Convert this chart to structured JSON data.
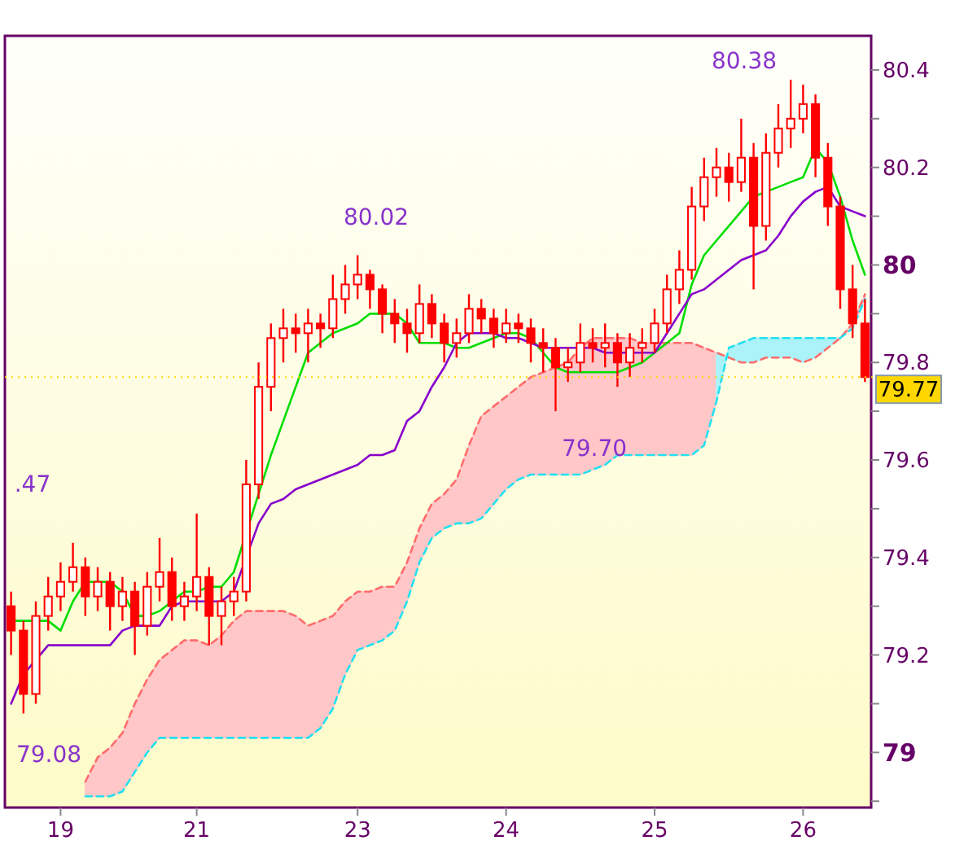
{
  "chart_data": {
    "type": "candlestick",
    "color": "#ff0000",
    "categories": [
      null,
      null,
      null,
      null,
      "19",
      null,
      null,
      null,
      null,
      null,
      null,
      null,
      null,
      null,
      null,
      "21",
      null,
      null,
      null,
      null,
      null,
      null,
      null,
      null,
      null,
      null,
      null,
      null,
      "23",
      null,
      null,
      null,
      null,
      null,
      null,
      null,
      null,
      null,
      null,
      null,
      "24",
      null,
      null,
      null,
      null,
      null,
      null,
      null,
      null,
      null,
      null,
      null,
      "25",
      null,
      null,
      null,
      null,
      null,
      null,
      null,
      null,
      null,
      null,
      null,
      "26",
      null,
      null,
      null,
      null,
      null
    ],
    "ohlc": [
      [
        79.3,
        79.33,
        79.2,
        79.25
      ],
      [
        79.25,
        79.27,
        79.08,
        79.12
      ],
      [
        79.12,
        79.31,
        79.1,
        79.28
      ],
      [
        79.28,
        79.36,
        79.25,
        79.32
      ],
      [
        79.32,
        79.39,
        79.29,
        79.35
      ],
      [
        79.35,
        79.43,
        79.33,
        79.38
      ],
      [
        79.38,
        79.4,
        79.28,
        79.32
      ],
      [
        79.32,
        79.38,
        79.29,
        79.35
      ],
      [
        79.35,
        79.37,
        79.25,
        79.3
      ],
      [
        79.3,
        79.36,
        79.27,
        79.33
      ],
      [
        79.33,
        79.35,
        79.2,
        79.26
      ],
      [
        79.26,
        79.37,
        79.24,
        79.34
      ],
      [
        79.34,
        79.44,
        79.31,
        79.37
      ],
      [
        79.37,
        79.4,
        79.27,
        79.3
      ],
      [
        79.3,
        79.35,
        79.27,
        79.32
      ],
      [
        79.32,
        79.49,
        79.29,
        79.36
      ],
      [
        79.36,
        79.38,
        79.22,
        79.28
      ],
      [
        79.28,
        79.34,
        79.22,
        79.31
      ],
      [
        79.31,
        79.36,
        79.28,
        79.33
      ],
      [
        79.33,
        79.6,
        79.31,
        79.55
      ],
      [
        79.55,
        79.8,
        79.52,
        79.75
      ],
      [
        79.75,
        79.88,
        79.7,
        79.85
      ],
      [
        79.85,
        79.91,
        79.8,
        79.87
      ],
      [
        79.87,
        79.9,
        79.82,
        79.86
      ],
      [
        79.86,
        79.91,
        79.8,
        79.88
      ],
      [
        79.88,
        79.9,
        79.83,
        79.87
      ],
      [
        79.87,
        79.98,
        79.85,
        79.93
      ],
      [
        79.93,
        80.0,
        79.9,
        79.96
      ],
      [
        79.96,
        80.02,
        79.93,
        79.98
      ],
      [
        79.98,
        79.99,
        79.91,
        79.95
      ],
      [
        79.95,
        79.96,
        79.86,
        79.9
      ],
      [
        79.9,
        79.93,
        79.84,
        79.88
      ],
      [
        79.88,
        79.91,
        79.82,
        79.86
      ],
      [
        79.86,
        79.96,
        79.84,
        79.92
      ],
      [
        79.92,
        79.94,
        79.85,
        79.88
      ],
      [
        79.88,
        79.9,
        79.8,
        79.84
      ],
      [
        79.84,
        79.89,
        79.81,
        79.86
      ],
      [
        79.86,
        79.94,
        79.84,
        79.91
      ],
      [
        79.91,
        79.93,
        79.86,
        79.89
      ],
      [
        79.89,
        79.91,
        79.83,
        79.86
      ],
      [
        79.86,
        79.91,
        79.84,
        79.88
      ],
      [
        79.88,
        79.9,
        79.84,
        79.87
      ],
      [
        79.87,
        79.89,
        79.8,
        79.84
      ],
      [
        79.84,
        79.87,
        79.78,
        79.83
      ],
      [
        79.83,
        79.85,
        79.7,
        79.79
      ],
      [
        79.79,
        79.83,
        79.76,
        79.8
      ],
      [
        79.8,
        79.88,
        79.78,
        79.84
      ],
      [
        79.84,
        79.87,
        79.8,
        79.83
      ],
      [
        79.83,
        79.88,
        79.79,
        79.84
      ],
      [
        79.84,
        79.86,
        79.75,
        79.8
      ],
      [
        79.8,
        79.86,
        79.77,
        79.83
      ],
      [
        79.83,
        79.87,
        79.8,
        79.84
      ],
      [
        79.84,
        79.91,
        79.82,
        79.88
      ],
      [
        79.88,
        79.98,
        79.86,
        79.95
      ],
      [
        79.95,
        80.03,
        79.92,
        79.99
      ],
      [
        79.99,
        80.16,
        79.97,
        80.12
      ],
      [
        80.12,
        80.22,
        80.09,
        80.18
      ],
      [
        80.18,
        80.24,
        80.14,
        80.2
      ],
      [
        80.2,
        80.23,
        80.13,
        80.17
      ],
      [
        80.17,
        80.3,
        80.15,
        80.22
      ],
      [
        80.22,
        80.25,
        79.95,
        80.08
      ],
      [
        80.08,
        80.27,
        80.05,
        80.23
      ],
      [
        80.23,
        80.33,
        80.2,
        80.28
      ],
      [
        80.28,
        80.38,
        80.24,
        80.3
      ],
      [
        80.3,
        80.37,
        80.27,
        80.33
      ],
      [
        80.33,
        80.35,
        80.18,
        80.22
      ],
      [
        80.22,
        80.25,
        80.08,
        80.12
      ],
      [
        80.12,
        80.14,
        79.91,
        79.95
      ],
      [
        79.95,
        80.0,
        79.85,
        79.88
      ],
      [
        79.88,
        79.93,
        79.76,
        79.77
      ]
    ],
    "series": [
      {
        "type": "line",
        "color": "#ff6b6b",
        "line_style": "dashed",
        "values": [
          null,
          null,
          null,
          null,
          null,
          null,
          78.94,
          78.99,
          79.01,
          79.04,
          79.1,
          79.15,
          79.19,
          79.21,
          79.23,
          79.23,
          79.22,
          79.24,
          79.27,
          79.29,
          79.29,
          79.29,
          79.29,
          79.28,
          79.26,
          79.27,
          79.28,
          79.31,
          79.33,
          79.33,
          79.34,
          79.34,
          79.39,
          79.46,
          79.51,
          79.53,
          79.56,
          79.63,
          79.69,
          79.71,
          79.73,
          79.75,
          79.77,
          79.78,
          79.79,
          79.8,
          79.83,
          79.85,
          79.85,
          79.85,
          79.85,
          79.84,
          79.84,
          79.84,
          79.84,
          79.84,
          79.83,
          79.82,
          79.81,
          79.8,
          79.8,
          79.81,
          79.81,
          79.81,
          79.8,
          79.81,
          79.83,
          79.85,
          79.88,
          79.94
        ],
        "upper": [
          null,
          null,
          null,
          null,
          null,
          null,
          78.94,
          78.99,
          79.01,
          79.04,
          79.1,
          79.15,
          79.19,
          79.21,
          79.23,
          79.23,
          79.22,
          79.24,
          79.27,
          79.29,
          79.29,
          79.29,
          79.29,
          79.28,
          79.26,
          79.27,
          79.28,
          79.31,
          79.33,
          79.33,
          79.34,
          79.34,
          79.39,
          79.46,
          79.51,
          79.53,
          79.56,
          79.63,
          79.69,
          79.71,
          79.73,
          79.75,
          79.77,
          79.78,
          79.79,
          79.8,
          79.83,
          79.85,
          79.85,
          79.85,
          79.85,
          79.84,
          79.84,
          79.84,
          79.84,
          79.84,
          79.83,
          79.82,
          79.81,
          null,
          null,
          null,
          null,
          null,
          null,
          null,
          79.83,
          79.85,
          79.88,
          79.94
        ],
        "lower": [
          null,
          null,
          null,
          null,
          null,
          null,
          78.91,
          78.91,
          78.91,
          78.92,
          78.96,
          79.0,
          79.03,
          79.03,
          79.03,
          79.03,
          79.03,
          79.03,
          79.03,
          79.03,
          79.03,
          79.03,
          79.03,
          79.03,
          79.03,
          79.05,
          79.09,
          79.16,
          79.21,
          79.22,
          79.23,
          79.25,
          79.31,
          79.39,
          79.44,
          79.46,
          79.47,
          79.47,
          79.48,
          79.51,
          79.54,
          79.56,
          79.57,
          79.57,
          79.57,
          79.57,
          79.57,
          79.58,
          79.59,
          79.61,
          79.61,
          79.61,
          79.61,
          79.61,
          79.61,
          79.61,
          79.63,
          79.72,
          79.83,
          null,
          null,
          null,
          null,
          null,
          null,
          null,
          79.85,
          79.85,
          79.87,
          79.93
        ]
      },
      {
        "type": "line",
        "color": "#22e0f0",
        "line_style": "dashed",
        "values": [
          null,
          null,
          null,
          null,
          null,
          null,
          78.91,
          78.91,
          78.91,
          78.92,
          78.96,
          79.0,
          79.03,
          79.03,
          79.03,
          79.03,
          79.03,
          79.03,
          79.03,
          79.03,
          79.03,
          79.03,
          79.03,
          79.03,
          79.03,
          79.05,
          79.09,
          79.16,
          79.21,
          79.22,
          79.23,
          79.25,
          79.31,
          79.39,
          79.44,
          79.46,
          79.47,
          79.47,
          79.48,
          79.51,
          79.54,
          79.56,
          79.57,
          79.57,
          79.57,
          79.57,
          79.57,
          79.58,
          79.59,
          79.61,
          79.61,
          79.61,
          79.61,
          79.61,
          79.61,
          79.61,
          79.63,
          79.72,
          79.83,
          79.84,
          79.85,
          79.85,
          79.85,
          79.85,
          79.85,
          79.85,
          79.85,
          79.85,
          79.87,
          79.93
        ],
        "upper": [
          null,
          null,
          null,
          null,
          null,
          null,
          null,
          null,
          null,
          null,
          null,
          null,
          null,
          null,
          null,
          null,
          null,
          null,
          null,
          null,
          null,
          null,
          null,
          null,
          null,
          null,
          null,
          null,
          null,
          null,
          null,
          null,
          null,
          null,
          null,
          null,
          null,
          null,
          null,
          null,
          null,
          null,
          null,
          null,
          null,
          null,
          null,
          null,
          null,
          null,
          null,
          null,
          null,
          null,
          null,
          null,
          null,
          79.72,
          79.83,
          79.84,
          79.85,
          79.85,
          79.85,
          79.85,
          79.85,
          79.85,
          79.85,
          79.85,
          null,
          null
        ],
        "lower": [
          null,
          null,
          null,
          null,
          null,
          null,
          null,
          null,
          null,
          null,
          null,
          null,
          null,
          null,
          null,
          null,
          null,
          null,
          null,
          null,
          null,
          null,
          null,
          null,
          null,
          null,
          null,
          null,
          null,
          null,
          null,
          null,
          null,
          null,
          null,
          null,
          null,
          null,
          null,
          null,
          null,
          null,
          null,
          null,
          null,
          null,
          null,
          null,
          null,
          null,
          null,
          null,
          null,
          null,
          null,
          null,
          null,
          79.82,
          79.81,
          79.8,
          79.8,
          79.81,
          79.81,
          79.81,
          79.8,
          79.81,
          79.83,
          79.85,
          null,
          null
        ]
      },
      {
        "type": "line",
        "color": "#00dd00",
        "values": [
          79.27,
          79.27,
          79.27,
          79.27,
          79.25,
          79.31,
          79.35,
          79.35,
          79.35,
          79.33,
          79.28,
          79.28,
          79.29,
          79.31,
          79.33,
          79.33,
          79.34,
          79.34,
          79.37,
          null,
          79.53,
          79.61,
          79.68,
          79.75,
          79.82,
          79.84,
          79.86,
          79.87,
          79.88,
          79.9,
          79.9,
          79.9,
          79.88,
          79.84,
          79.84,
          79.84,
          79.83,
          79.83,
          79.84,
          79.85,
          79.86,
          79.86,
          79.85,
          79.82,
          79.79,
          79.78,
          79.78,
          79.78,
          79.78,
          79.78,
          79.79,
          79.8,
          79.82,
          79.84,
          79.86,
          79.96,
          80.02,
          80.05,
          80.08,
          80.11,
          80.14,
          80.15,
          80.16,
          80.17,
          80.18,
          80.24,
          80.21,
          80.14,
          80.05,
          79.98
        ]
      },
      {
        "type": "line",
        "color": "#8800cc",
        "values": [
          79.1,
          79.16,
          79.19,
          79.22,
          79.22,
          79.22,
          79.22,
          79.22,
          79.22,
          79.25,
          79.26,
          79.26,
          79.26,
          79.3,
          79.31,
          79.31,
          79.31,
          79.31,
          79.33,
          null,
          79.47,
          79.51,
          79.52,
          79.54,
          79.55,
          79.56,
          79.57,
          79.58,
          79.59,
          79.61,
          79.61,
          79.62,
          79.68,
          79.7,
          79.75,
          79.79,
          79.84,
          79.86,
          79.86,
          79.86,
          79.85,
          79.85,
          79.84,
          79.83,
          79.83,
          79.83,
          79.83,
          79.83,
          79.82,
          79.82,
          79.82,
          79.82,
          79.82,
          79.86,
          79.9,
          79.94,
          79.95,
          79.97,
          79.99,
          80.01,
          80.02,
          80.03,
          80.06,
          80.1,
          80.13,
          80.15,
          80.16,
          80.12,
          80.11,
          80.1
        ]
      }
    ],
    "ylim": [
      78.887,
      80.47
    ],
    "yticks": [
      {
        "value": 78.9,
        "label": null
      },
      79,
      {
        "value": 79.1,
        "label": null
      },
      79.2,
      {
        "value": 79.3,
        "label": null
      },
      79.4,
      {
        "value": 79.5,
        "label": null
      },
      79.6,
      {
        "value": 79.7,
        "label": null
      },
      79.8,
      {
        "value": 79.9,
        "label": null
      },
      80,
      {
        "value": 80.1,
        "label": null
      },
      80.2,
      {
        "value": 80.3,
        "label": null
      },
      80.4
    ],
    "ref_lines": [
      {
        "axis": "y",
        "value": 79.77,
        "label": "79.77",
        "color": "#ffd700"
      }
    ],
    "annotations": [
      "80.38",
      "80.02",
      "79.70",
      "79.08",
      ".47"
    ],
    "grid": false
  }
}
